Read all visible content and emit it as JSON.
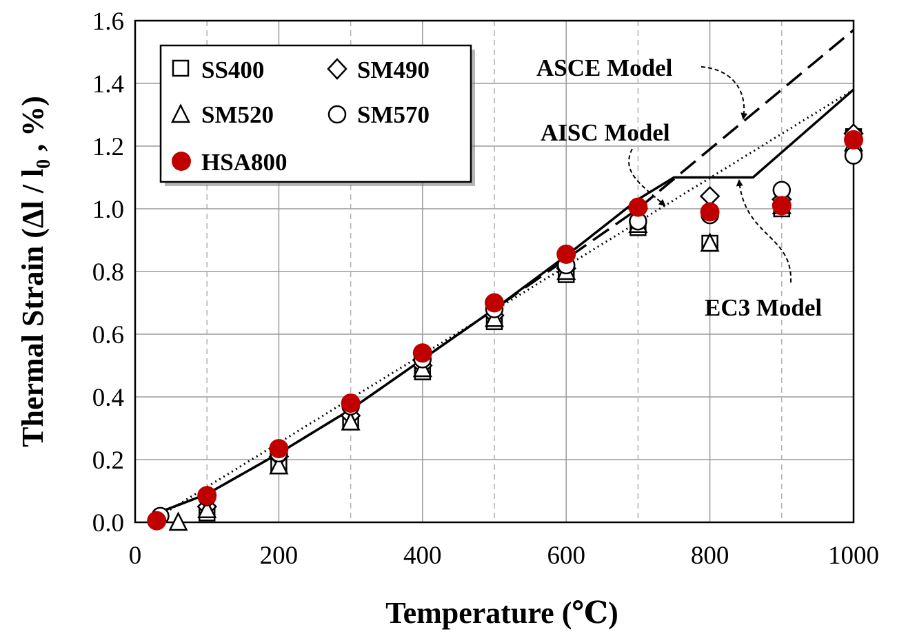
{
  "chart_data": {
    "type": "scatter",
    "xlabel": "Temperature (℃)",
    "ylabel": "Thermal Strain (Δl / l",
    "ylabel_sub": "0",
    "ylabel_tail": " , %)",
    "xlim": [
      0,
      1000
    ],
    "ylim": [
      0,
      1.6
    ],
    "x_ticks": [
      0,
      200,
      400,
      600,
      800,
      1000
    ],
    "x_tick_labels": [
      "0",
      "200",
      "400",
      "600",
      "800",
      "1000"
    ],
    "y_ticks": [
      0,
      0.2,
      0.4,
      0.6,
      0.8,
      1.0,
      1.2,
      1.4,
      1.6
    ],
    "y_tick_labels": [
      "0.0",
      "0.2",
      "0.4",
      "0.6",
      "0.8",
      "1.0",
      "1.2",
      "1.4",
      "1.6"
    ],
    "grid": {
      "vertical_dashed": [
        100,
        300,
        500,
        700,
        900
      ],
      "vertical_solid": [
        200,
        400,
        600,
        800
      ],
      "horizontal": true
    },
    "legend_position": "top-left",
    "series": [
      {
        "name": "SS400",
        "marker": "square",
        "color": "#000000",
        "x": [
          100,
          200,
          300,
          400,
          500,
          600,
          700,
          800,
          900,
          1000
        ],
        "y": [
          0.03,
          0.18,
          0.32,
          0.48,
          0.64,
          0.79,
          0.94,
          0.89,
          1.0,
          1.23
        ]
      },
      {
        "name": "SM490",
        "marker": "diamond",
        "color": "#000000",
        "x": [
          100,
          200,
          300,
          400,
          500,
          600,
          700,
          800,
          900,
          1000
        ],
        "y": [
          0.05,
          0.21,
          0.34,
          0.5,
          0.66,
          0.81,
          1.0,
          1.04,
          1.03,
          1.24
        ]
      },
      {
        "name": "SM520",
        "marker": "triangle",
        "color": "#000000",
        "x": [
          60,
          100,
          200,
          300,
          400,
          500,
          600,
          700,
          800,
          900,
          1000
        ],
        "y": [
          0.0,
          0.04,
          0.18,
          0.32,
          0.49,
          0.65,
          0.8,
          0.95,
          0.89,
          1.01,
          1.21
        ]
      },
      {
        "name": "SM570",
        "marker": "circle-open",
        "color": "#000000",
        "x": [
          35,
          100,
          200,
          300,
          400,
          500,
          600,
          700,
          800,
          900,
          1000
        ],
        "y": [
          0.02,
          0.08,
          0.22,
          0.37,
          0.52,
          0.68,
          0.82,
          0.96,
          0.98,
          1.06,
          1.17
        ]
      },
      {
        "name": "HSA800",
        "marker": "circle-filled",
        "color": "#c00000",
        "x": [
          30,
          100,
          200,
          300,
          400,
          500,
          600,
          700,
          800,
          900,
          1000
        ],
        "y": [
          0.005,
          0.085,
          0.235,
          0.38,
          0.54,
          0.7,
          0.855,
          1.005,
          0.99,
          1.01,
          1.22
        ]
      }
    ],
    "models": [
      {
        "name": "ASCE Model",
        "style": "dashed",
        "x": [
          20,
          100,
          200,
          300,
          400,
          500,
          600,
          700,
          1000
        ],
        "y": [
          0.02,
          0.09,
          0.22,
          0.36,
          0.52,
          0.68,
          0.84,
          1.0,
          1.57
        ]
      },
      {
        "name": "AISC Model",
        "style": "dotted",
        "x": [
          20,
          1000
        ],
        "y": [
          0.0,
          1.38
        ]
      },
      {
        "name": "EC3 Model",
        "style": "solid",
        "x": [
          20,
          100,
          200,
          300,
          400,
          500,
          600,
          700,
          750,
          860,
          1000
        ],
        "y": [
          0.02,
          0.09,
          0.22,
          0.36,
          0.52,
          0.68,
          0.85,
          1.03,
          1.1,
          1.1,
          1.38
        ]
      }
    ],
    "annotations": [
      {
        "text": "ASCE Model",
        "target": "ASCE Model"
      },
      {
        "text": "AISC Model",
        "target": "AISC Model"
      },
      {
        "text": "EC3 Model",
        "target": "EC3 Model"
      }
    ]
  }
}
